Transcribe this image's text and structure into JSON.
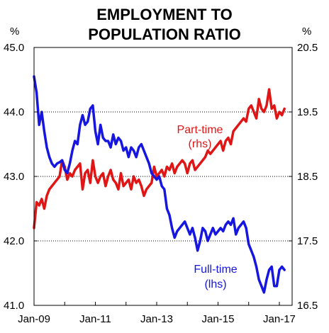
{
  "chart_data": {
    "type": "line",
    "title_lines": [
      "EMPLOYMENT TO",
      "POPULATION RATIO"
    ],
    "left_unit": "%",
    "right_unit": "%",
    "left_axis": {
      "min": 41.0,
      "max": 45.0,
      "ticks": [
        "41.0",
        "42.0",
        "43.0",
        "44.0",
        "45.0"
      ]
    },
    "right_axis": {
      "min": 16.5,
      "max": 20.5,
      "ticks": [
        "16.5",
        "17.5",
        "18.5",
        "19.5",
        "20.5"
      ]
    },
    "x_ticks": [
      "Jan-09",
      "Jan-11",
      "Jan-13",
      "Jan-15",
      "Jan-17"
    ],
    "x_range": [
      "2009-01",
      "2017-06"
    ],
    "grid": "horizontal dotted at 42.0, 43.0, 44.0",
    "series": [
      {
        "name": "Full-time",
        "axis_label": "(lhs)",
        "axis": "left",
        "color": "#1616e0",
        "start": "2009-01",
        "step": "month",
        "values": [
          44.55,
          44.3,
          43.8,
          44.0,
          43.7,
          43.45,
          43.3,
          43.2,
          43.15,
          43.2,
          43.22,
          43.25,
          43.1,
          43.05,
          43.2,
          43.4,
          43.55,
          43.5,
          43.8,
          43.95,
          43.8,
          43.85,
          44.05,
          44.1,
          43.7,
          43.5,
          43.8,
          43.6,
          43.55,
          43.55,
          43.45,
          43.65,
          43.5,
          43.6,
          43.55,
          43.4,
          43.45,
          43.3,
          43.45,
          43.4,
          43.3,
          43.45,
          43.5,
          43.4,
          43.3,
          43.2,
          43.05,
          43.0,
          42.95,
          43.0,
          42.85,
          42.8,
          42.5,
          42.4,
          42.2,
          42.05,
          42.15,
          42.2,
          42.25,
          42.3,
          42.2,
          42.1,
          42.2,
          42.05,
          41.85,
          42.0,
          42.2,
          42.15,
          42.0,
          42.1,
          42.2,
          42.1,
          42.15,
          42.2,
          42.15,
          42.25,
          42.3,
          42.25,
          42.35,
          42.1,
          42.2,
          42.25,
          42.3,
          42.2,
          41.95,
          41.85,
          41.75,
          41.6,
          41.4,
          41.3,
          41.2,
          41.4,
          41.55,
          41.6,
          41.3,
          41.3,
          41.55,
          41.6,
          41.55
        ]
      },
      {
        "name": "Part-time",
        "axis_label": "(rhs)",
        "axis": "right",
        "color": "#e01616",
        "start": "2009-01",
        "step": "month",
        "values": [
          17.7,
          18.1,
          18.05,
          18.15,
          18.0,
          18.2,
          18.3,
          18.35,
          18.4,
          18.45,
          18.5,
          18.75,
          18.65,
          18.45,
          18.55,
          18.5,
          18.6,
          18.65,
          18.7,
          18.3,
          18.55,
          18.6,
          18.4,
          18.75,
          18.5,
          18.4,
          18.5,
          18.55,
          18.35,
          18.5,
          18.6,
          18.45,
          18.4,
          18.3,
          18.55,
          18.35,
          18.4,
          18.45,
          18.3,
          18.5,
          18.4,
          18.45,
          18.35,
          18.2,
          18.3,
          18.35,
          18.4,
          18.65,
          18.5,
          18.55,
          18.6,
          18.5,
          18.65,
          18.6,
          18.7,
          18.55,
          18.65,
          18.7,
          18.75,
          18.7,
          18.55,
          18.7,
          18.75,
          18.6,
          18.65,
          18.7,
          18.75,
          18.8,
          18.9,
          18.85,
          18.9,
          18.95,
          19.0,
          19.05,
          18.9,
          19.05,
          19.1,
          19.0,
          19.2,
          19.25,
          19.3,
          19.35,
          19.4,
          19.35,
          19.55,
          19.6,
          19.5,
          19.4,
          19.7,
          19.55,
          19.5,
          19.6,
          19.85,
          19.55,
          19.6,
          19.4,
          19.5,
          19.45,
          19.55
        ]
      }
    ]
  }
}
